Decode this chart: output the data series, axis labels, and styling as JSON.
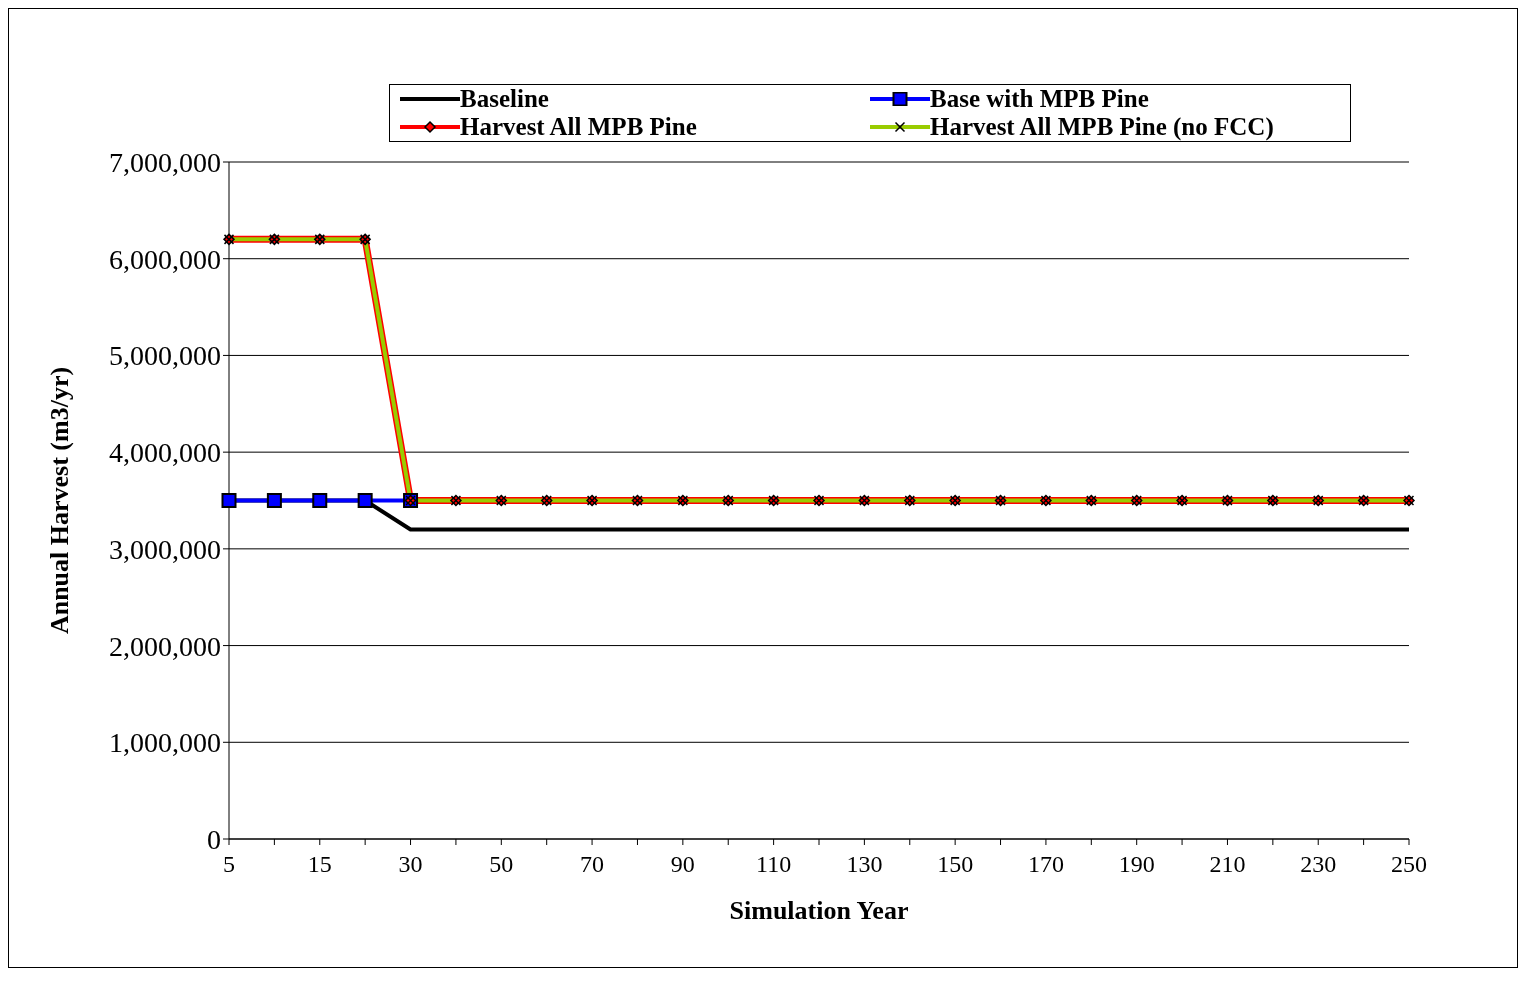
{
  "chart_data": {
    "type": "line",
    "xlabel": "Simulation Year",
    "ylabel": "Annual Harvest (m3/yr)",
    "categories": [
      "5",
      null,
      "15",
      null,
      "30",
      null,
      "50",
      null,
      "70",
      null,
      "90",
      null,
      "110",
      null,
      "130",
      null,
      "150",
      null,
      "170",
      null,
      "190",
      null,
      "210",
      null,
      "230",
      null,
      "250"
    ],
    "series": [
      {
        "name": "Baseline",
        "color": "#000000",
        "marker": "none",
        "values": [
          3500000,
          3500000,
          3500000,
          3500000,
          3200000,
          3200000,
          3200000,
          3200000,
          3200000,
          3200000,
          3200000,
          3200000,
          3200000,
          3200000,
          3200000,
          3200000,
          3200000,
          3200000,
          3200000,
          3200000,
          3200000,
          3200000,
          3200000,
          3200000,
          3200000,
          3200000,
          3200000
        ]
      },
      {
        "name": "Base with MPB Pine",
        "color": "#0000ff",
        "marker": "square",
        "values": [
          3500000,
          3500000,
          3500000,
          3500000,
          3500000,
          null,
          null,
          null,
          null,
          null,
          null,
          null,
          null,
          null,
          null,
          null,
          null,
          null,
          null,
          null,
          null,
          null,
          null,
          null,
          null,
          null,
          null
        ]
      },
      {
        "name": "Harvest All MPB Pine",
        "color": "#ff0000",
        "marker": "diamond",
        "values": [
          6200000,
          6200000,
          6200000,
          6200000,
          3500000,
          3500000,
          3500000,
          3500000,
          3500000,
          3500000,
          3500000,
          3500000,
          3500000,
          3500000,
          3500000,
          3500000,
          3500000,
          3500000,
          3500000,
          3500000,
          3500000,
          3500000,
          3500000,
          3500000,
          3500000,
          3500000,
          3500000
        ]
      },
      {
        "name": "Harvest All MPB Pine (no FCC)",
        "color": "#99cc00",
        "marker": "cross",
        "values": [
          6200000,
          6200000,
          6200000,
          6200000,
          3500000,
          3500000,
          3500000,
          3500000,
          3500000,
          3500000,
          3500000,
          3500000,
          3500000,
          3500000,
          3500000,
          3500000,
          3500000,
          3500000,
          3500000,
          3500000,
          3500000,
          3500000,
          3500000,
          3500000,
          3500000,
          3500000,
          3500000
        ]
      }
    ],
    "ylim": [
      0,
      7000000
    ],
    "yticks": [
      0,
      {
        "value": 1000000,
        "label": "1,000,000"
      },
      {
        "value": 2000000,
        "label": "2,000,000"
      },
      {
        "value": 3000000,
        "label": "3,000,000"
      },
      {
        "value": 4000000,
        "label": "4,000,000"
      },
      {
        "value": 5000000,
        "label": "5,000,000"
      },
      {
        "value": 6000000,
        "label": "6,000,000"
      },
      {
        "value": 7000000,
        "label": "7,000,000"
      }
    ],
    "grid": "y",
    "legend": "top",
    "line_style": "solid"
  }
}
